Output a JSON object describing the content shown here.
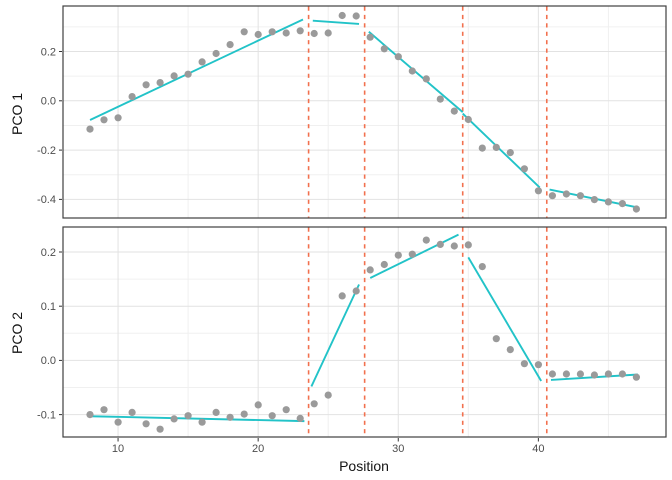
{
  "figure": {
    "x_axis_title": "Position",
    "panel1_title": "PCO 1",
    "panel2_title": "PCO 2"
  },
  "style": {
    "background": "#ffffff",
    "panel_background": "#ffffff",
    "panel_border": "#3f3f3f",
    "grid_major": "#e2e2e2",
    "grid_minor": "#f0f0f0",
    "point_color": "#9a9a9a",
    "line_color": "#22c3c8",
    "vline_color": "#f2704e",
    "tick_color": "#333333",
    "tick_label_color": "#4d4d4d"
  },
  "chart_data": {
    "type": "scatter",
    "title": "",
    "xlabel": "Position",
    "grid": true,
    "legend": false,
    "xlim": [
      6.07,
      49.11
    ],
    "x_ticks": [
      "10",
      "20",
      "30",
      "40"
    ],
    "x_minor_ticks": [
      15,
      25,
      35,
      45
    ],
    "breakpoints_x": [
      23.6,
      27.6,
      34.6,
      40.6
    ],
    "x": [
      8,
      9,
      10,
      11,
      12,
      13,
      14,
      15,
      16,
      17,
      18,
      19,
      20,
      21,
      22,
      23,
      24,
      25,
      26,
      27,
      28,
      29,
      30,
      31,
      32,
      33,
      34,
      35,
      36,
      37,
      38,
      39,
      40,
      41,
      42,
      43,
      44,
      45,
      46,
      47
    ],
    "panels": [
      {
        "ylabel": "PCO 1",
        "ylim": [
          -0.4755,
          0.3846
        ],
        "y_ticks": [
          "0.2",
          "0.0",
          "-0.2",
          "-0.4"
        ],
        "y_minor_ticks": [
          0.3,
          0.1,
          -0.1,
          -0.3
        ],
        "points": [
          -0.115,
          -0.077,
          -0.069,
          0.017,
          0.065,
          0.074,
          0.101,
          0.108,
          0.158,
          0.192,
          0.228,
          0.28,
          0.269,
          0.28,
          0.275,
          0.284,
          0.273,
          0.275,
          0.346,
          0.344,
          0.258,
          0.211,
          0.179,
          0.121,
          0.089,
          0.007,
          -0.042,
          -0.076,
          -0.192,
          -0.189,
          -0.21,
          -0.276,
          -0.365,
          -0.385,
          -0.378,
          -0.385,
          -0.401,
          -0.41,
          -0.417,
          -0.439
        ],
        "trend_segments": [
          [
            8.0,
            -0.078,
            23.2,
            0.33
          ],
          [
            23.9,
            0.325,
            27.2,
            0.312
          ],
          [
            27.9,
            0.28,
            34.6,
            -0.046
          ],
          [
            34.6,
            -0.052,
            40.1,
            -0.352
          ],
          [
            40.8,
            -0.36,
            47.2,
            -0.434
          ]
        ]
      },
      {
        "ylabel": "PCO 2",
        "ylim": [
          -0.1413,
          0.2461
        ],
        "y_ticks": [
          "0.2",
          "0.1",
          "0.0",
          "-0.1"
        ],
        "y_minor_ticks": [
          0.15,
          0.05,
          -0.05
        ],
        "points": [
          -0.1,
          -0.091,
          -0.114,
          -0.096,
          -0.117,
          -0.127,
          -0.108,
          -0.102,
          -0.114,
          -0.096,
          -0.105,
          -0.099,
          -0.082,
          -0.102,
          -0.091,
          -0.107,
          -0.08,
          -0.064,
          0.119,
          0.128,
          0.167,
          0.177,
          0.194,
          0.196,
          0.222,
          0.214,
          0.211,
          0.213,
          0.173,
          0.04,
          0.02,
          -0.006,
          -0.008,
          -0.025,
          -0.025,
          -0.025,
          -0.027,
          -0.025,
          -0.025,
          -0.031
        ],
        "trend_segments": [
          [
            8.0,
            -0.103,
            23.3,
            -0.112
          ],
          [
            23.8,
            -0.048,
            27.2,
            0.14
          ],
          [
            28.0,
            0.152,
            34.3,
            0.232
          ],
          [
            35.0,
            0.19,
            40.2,
            -0.038
          ],
          [
            40.9,
            -0.036,
            47.1,
            -0.026
          ]
        ]
      }
    ]
  }
}
